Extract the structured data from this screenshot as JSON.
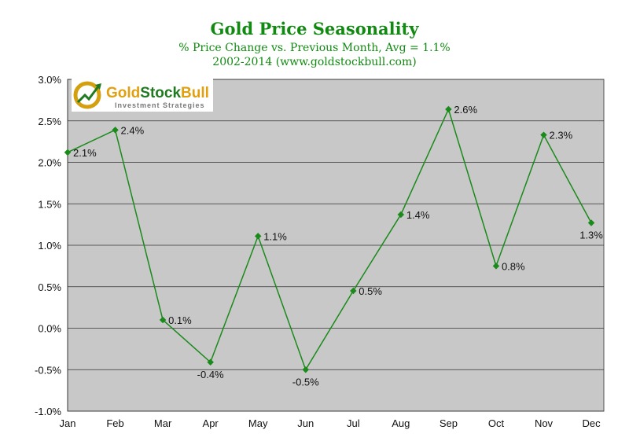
{
  "chart_data": {
    "type": "line",
    "title": "Gold Price Seasonality",
    "subtitle": "% Price Change vs. Previous Month, Avg = 1.1%",
    "subtitle2": "2002-2014 (www.goldstockbull.com)",
    "xlabel": "",
    "ylabel": "",
    "categories": [
      "Jan",
      "Feb",
      "Mar",
      "Apr",
      "May",
      "Jun",
      "Jul",
      "Aug",
      "Sep",
      "Oct",
      "Nov",
      "Dec"
    ],
    "values": [
      2.12,
      2.39,
      0.1,
      -0.41,
      1.11,
      -0.5,
      0.45,
      1.37,
      2.64,
      0.75,
      2.33,
      1.27
    ],
    "data_labels": [
      "2.1%",
      "2.4%",
      "0.1%",
      "-0.4%",
      "1.1%",
      "-0.5%",
      "0.5%",
      "1.4%",
      "2.6%",
      "0.8%",
      "2.3%",
      "1.3%"
    ],
    "ylim": [
      -1.0,
      3.0
    ],
    "yticks": [
      "-1.0%",
      "-0.5%",
      "0.0%",
      "0.5%",
      "1.0%",
      "1.5%",
      "2.0%",
      "2.5%",
      "3.0%"
    ],
    "grid": true,
    "colors": {
      "line": "#1a8a1a",
      "plot_bg": "#c8c8c8",
      "title": "#118a11"
    }
  },
  "logo": {
    "name": "GoldStockBull",
    "tagline": "Investment Strategies"
  }
}
